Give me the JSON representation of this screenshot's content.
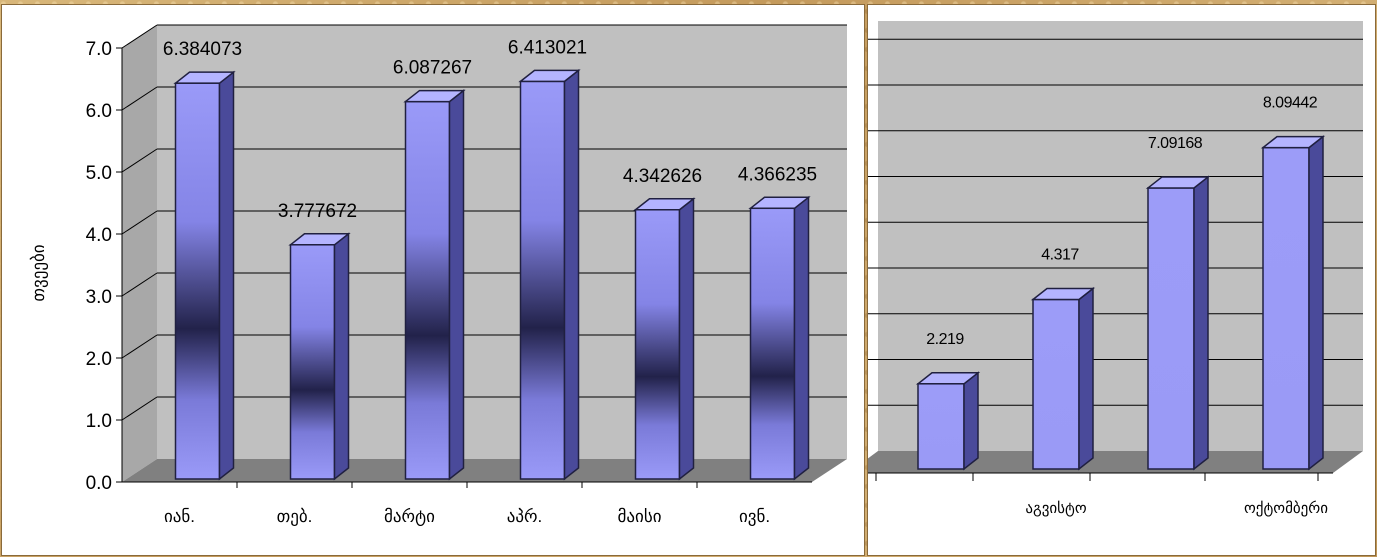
{
  "chart_data": [
    {
      "type": "bar",
      "categories": [
        "იან.",
        "თებ.",
        "მარტი",
        "აპრ.",
        "მაისი",
        "ივნ."
      ],
      "values": [
        6.384073,
        3.777672,
        6.087267,
        6.413021,
        4.342626,
        4.366235
      ],
      "value_labels": [
        "6.384073",
        "3.777672",
        "6.087267",
        "6.413021",
        "4.342626",
        "4.366235"
      ],
      "ylabel": "თვეები",
      "ylim": [
        0,
        7
      ],
      "yticks": [
        "0.0",
        "1.0",
        "2.0",
        "3.0",
        "4.0",
        "5.0",
        "6.0",
        "7.0"
      ],
      "grid": true,
      "style": "3d-column"
    },
    {
      "type": "bar",
      "categories": [
        "",
        "აგვისტო",
        "",
        "ოქტომბერი"
      ],
      "values": [
        2.219,
        4.317,
        7.09168,
        8.09442
      ],
      "value_labels": [
        "2.219",
        "4.317",
        "7.09168",
        "8.09442"
      ],
      "grid": true,
      "style": "3d-column"
    }
  ],
  "colors": {
    "bar_face": "#9a9af8",
    "bar_dark": "#22224a",
    "bar_side": "#4a4a9a",
    "bar_top": "#b4b4ff",
    "wall": "#c0c0c0",
    "floor": "#808080",
    "grid": "#000000",
    "background": "#c9a66b"
  }
}
